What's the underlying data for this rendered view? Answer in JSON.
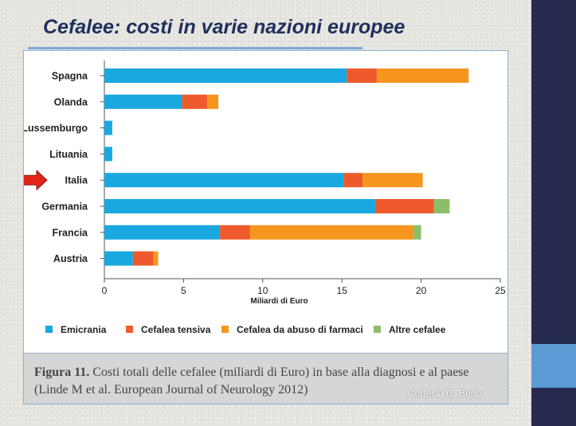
{
  "slide": {
    "title": "Cefalee: costi in varie nazioni europee",
    "credit": "Cortesia G. Bono"
  },
  "caption": {
    "label": "Figura 11.",
    "text": " Costi totali delle cefalee (miliardi di Euro) in base alla diagnosi e al paese (Linde M et al. European Journal of Neurology 2012)"
  },
  "colors": {
    "emicrania": "#1aa8e0",
    "tensiva": "#ee5a2c",
    "abuso": "#f6961f",
    "altre": "#8bbe6a",
    "arrow": "#e2231a",
    "title": "#1f2f5c"
  },
  "icons": {
    "highlight": "right-arrow-icon"
  },
  "highlighted_category": "Italia",
  "chart_data": {
    "type": "bar",
    "orientation": "horizontal",
    "stacked": true,
    "categories": [
      "Spagna",
      "Olanda",
      "Lussemburgo",
      "Lituania",
      "Italia",
      "Germania",
      "Francia",
      "Austria"
    ],
    "series": [
      {
        "name": "Emicrania",
        "color": "#1aa8e0",
        "values": [
          15.3,
          4.9,
          0.5,
          0.5,
          15.1,
          17.1,
          7.3,
          1.8
        ]
      },
      {
        "name": "Cefalea tensiva",
        "color": "#ee5a2c",
        "values": [
          1.9,
          1.6,
          0,
          0,
          1.2,
          3.7,
          1.9,
          1.3
        ]
      },
      {
        "name": "Cefalea da abuso di farmaci",
        "color": "#f6961f",
        "values": [
          5.8,
          0.7,
          0,
          0,
          3.8,
          0,
          10.3,
          0.3
        ]
      },
      {
        "name": "Altre cefalee",
        "color": "#8bbe6a",
        "values": [
          0,
          0,
          0,
          0,
          0,
          1.0,
          0.5,
          0
        ]
      }
    ],
    "xlabel": "Miliardi di Euro",
    "ylabel": "",
    "xlim": [
      0,
      25
    ],
    "xticks": [
      0,
      5,
      10,
      15,
      20,
      25
    ],
    "grid": false,
    "legend_position": "bottom"
  }
}
